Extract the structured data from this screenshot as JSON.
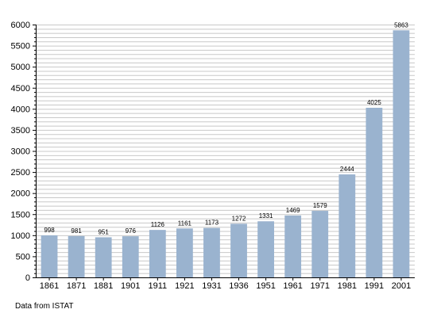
{
  "source_note": "Data from ISTAT",
  "chart_data": {
    "type": "bar",
    "title": "",
    "xlabel": "",
    "ylabel": "",
    "categories": [
      "1861",
      "1871",
      "1881",
      "1901",
      "1911",
      "1921",
      "1931",
      "1936",
      "1951",
      "1961",
      "1971",
      "1981",
      "1991",
      "2001"
    ],
    "values": [
      998,
      981,
      951,
      976,
      1126,
      1161,
      1173,
      1272,
      1331,
      1469,
      1579,
      2444,
      4025,
      5863
    ],
    "data_labels": [
      "998",
      "981",
      "951",
      "976",
      "1126",
      "1161",
      "1173",
      "1272",
      "1331",
      "1469",
      "1579",
      "2444",
      "4025",
      "5863"
    ],
    "ylim": [
      0,
      6000
    ],
    "y_ticks": [
      0,
      500,
      1000,
      1500,
      2000,
      2500,
      3000,
      3500,
      4000,
      4500,
      5000,
      5500,
      6000
    ],
    "grid": true,
    "bar_color": "#9ab3cf",
    "grid_color": "#c8c8c8"
  }
}
